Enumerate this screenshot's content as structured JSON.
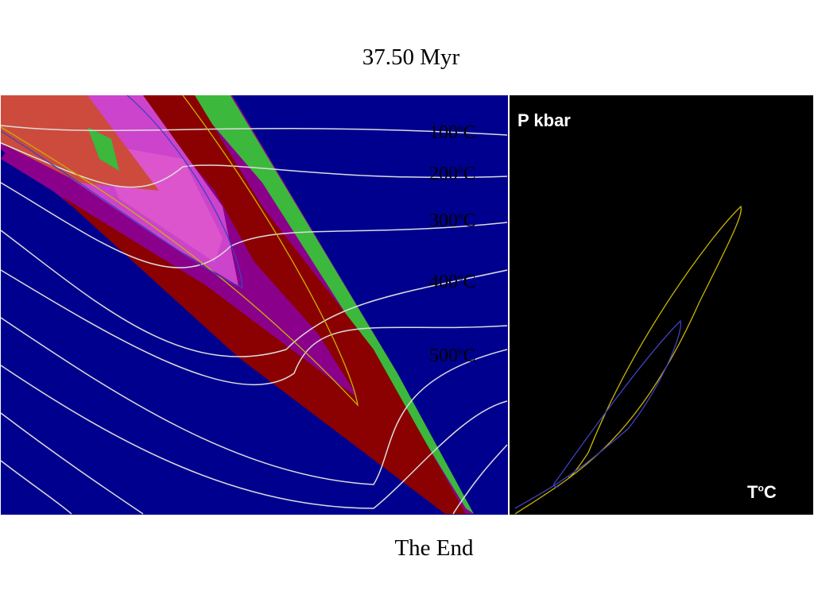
{
  "header": {
    "title": "37.50 Myr"
  },
  "figure": {
    "isotherm_labels": [
      [
        "100",
        "o",
        "C"
      ],
      [
        "200",
        "o",
        "C"
      ],
      [
        "300",
        "o",
        "C"
      ],
      [
        "400",
        "o",
        "C"
      ],
      [
        "500",
        "o",
        "C"
      ]
    ],
    "pt_panel": {
      "y_label": "P kbar",
      "x_label": [
        "T",
        "o",
        "C"
      ]
    }
  },
  "footer": {
    "text": "The End"
  }
}
